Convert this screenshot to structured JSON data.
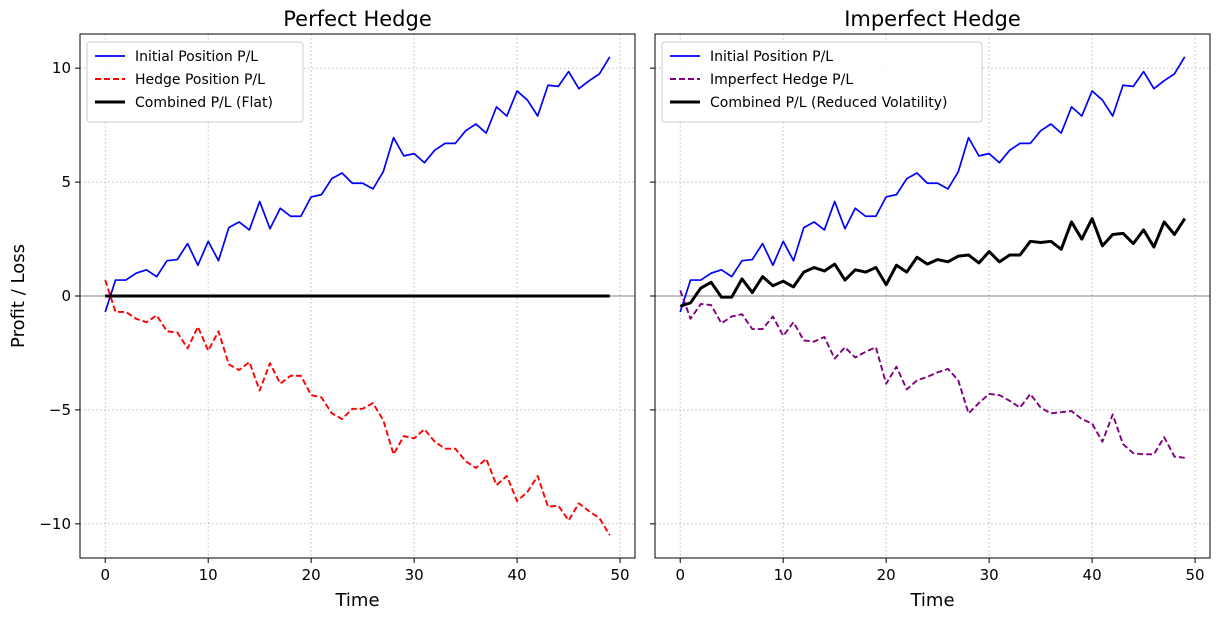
{
  "chart_data": [
    {
      "type": "line",
      "title": "Perfect Hedge",
      "xlabel": "Time",
      "ylabel": "Profit / Loss",
      "xlim": [
        -2.45,
        51.45
      ],
      "ylim": [
        -11.5,
        11.5
      ],
      "x_ticks": [
        0,
        10,
        20,
        30,
        40,
        50
      ],
      "y_ticks": [
        -10,
        -5,
        0,
        5,
        10
      ],
      "x_tick_labels": [
        "0",
        "10",
        "20",
        "30",
        "40",
        "50"
      ],
      "y_tick_labels": [
        "−10",
        "−5",
        "0",
        "5",
        "10"
      ],
      "grid": true,
      "zero_line": true,
      "legend_position": "upper left",
      "x": [
        0,
        1,
        2,
        3,
        4,
        5,
        6,
        7,
        8,
        9,
        10,
        11,
        12,
        13,
        14,
        15,
        16,
        17,
        18,
        19,
        20,
        21,
        22,
        23,
        24,
        25,
        26,
        27,
        28,
        29,
        30,
        31,
        32,
        33,
        34,
        35,
        36,
        37,
        38,
        39,
        40,
        41,
        42,
        43,
        44,
        45,
        46,
        47,
        48,
        49
      ],
      "series": [
        {
          "name": "Initial Position P/L",
          "color": "#0000ff",
          "style": "solid",
          "values": [
            -0.7,
            0.7,
            0.7,
            1.0,
            1.15,
            0.85,
            1.55,
            1.6,
            2.3,
            1.35,
            2.4,
            1.55,
            3.0,
            3.25,
            2.9,
            4.15,
            2.95,
            3.85,
            3.5,
            3.5,
            4.35,
            4.45,
            5.15,
            5.4,
            4.95,
            4.95,
            4.7,
            5.45,
            6.95,
            6.15,
            6.25,
            5.85,
            6.4,
            6.7,
            6.7,
            7.25,
            7.55,
            7.15,
            8.3,
            7.9,
            9.0,
            8.6,
            7.9,
            9.25,
            9.2,
            9.85,
            9.1,
            9.45,
            9.75,
            10.5
          ]
        },
        {
          "name": "Hedge Position P/L",
          "color": "#ff0000",
          "style": "dashed",
          "values": [
            0.7,
            -0.7,
            -0.7,
            -1.0,
            -1.15,
            -0.85,
            -1.55,
            -1.6,
            -2.3,
            -1.35,
            -2.4,
            -1.55,
            -3.0,
            -3.25,
            -2.9,
            -4.15,
            -2.95,
            -3.85,
            -3.5,
            -3.5,
            -4.35,
            -4.45,
            -5.15,
            -5.4,
            -4.95,
            -4.95,
            -4.7,
            -5.45,
            -6.95,
            -6.15,
            -6.25,
            -5.85,
            -6.4,
            -6.7,
            -6.7,
            -7.25,
            -7.55,
            -7.15,
            -8.3,
            -7.9,
            -9.0,
            -8.6,
            -7.9,
            -9.25,
            -9.2,
            -9.85,
            -9.1,
            -9.45,
            -9.75,
            -10.5
          ]
        },
        {
          "name": "Combined P/L (Flat)",
          "color": "#000000",
          "style": "thick",
          "values": [
            0,
            0,
            0,
            0,
            0,
            0,
            0,
            0,
            0,
            0,
            0,
            0,
            0,
            0,
            0,
            0,
            0,
            0,
            0,
            0,
            0,
            0,
            0,
            0,
            0,
            0,
            0,
            0,
            0,
            0,
            0,
            0,
            0,
            0,
            0,
            0,
            0,
            0,
            0,
            0,
            0,
            0,
            0,
            0,
            0,
            0,
            0,
            0,
            0,
            0
          ]
        }
      ]
    },
    {
      "type": "line",
      "title": "Imperfect Hedge",
      "xlabel": "Time",
      "ylabel": "",
      "xlim": [
        -2.45,
        51.45
      ],
      "ylim": [
        -11.5,
        11.5
      ],
      "x_ticks": [
        0,
        10,
        20,
        30,
        40,
        50
      ],
      "y_ticks": [
        -10,
        -5,
        0,
        5,
        10
      ],
      "x_tick_labels": [
        "0",
        "10",
        "20",
        "30",
        "40",
        "50"
      ],
      "y_tick_labels": [],
      "grid": true,
      "zero_line": true,
      "legend_position": "upper left",
      "x": [
        0,
        1,
        2,
        3,
        4,
        5,
        6,
        7,
        8,
        9,
        10,
        11,
        12,
        13,
        14,
        15,
        16,
        17,
        18,
        19,
        20,
        21,
        22,
        23,
        24,
        25,
        26,
        27,
        28,
        29,
        30,
        31,
        32,
        33,
        34,
        35,
        36,
        37,
        38,
        39,
        40,
        41,
        42,
        43,
        44,
        45,
        46,
        47,
        48,
        49
      ],
      "series": [
        {
          "name": "Initial Position P/L",
          "color": "#0000ff",
          "style": "solid",
          "values": [
            -0.7,
            0.7,
            0.7,
            1.0,
            1.15,
            0.85,
            1.55,
            1.6,
            2.3,
            1.35,
            2.4,
            1.55,
            3.0,
            3.25,
            2.9,
            4.15,
            2.95,
            3.85,
            3.5,
            3.5,
            4.35,
            4.45,
            5.15,
            5.4,
            4.95,
            4.95,
            4.7,
            5.45,
            6.95,
            6.15,
            6.25,
            5.85,
            6.4,
            6.7,
            6.7,
            7.25,
            7.55,
            7.15,
            8.3,
            7.9,
            9.0,
            8.6,
            7.9,
            9.25,
            9.2,
            9.85,
            9.1,
            9.45,
            9.75,
            10.5
          ]
        },
        {
          "name": "Imperfect Hedge P/L",
          "color": "#800080",
          "style": "dashed",
          "values": [
            0.25,
            -1.0,
            -0.35,
            -0.4,
            -1.2,
            -0.9,
            -0.8,
            -1.45,
            -1.45,
            -0.9,
            -1.75,
            -1.15,
            -1.95,
            -2.0,
            -1.8,
            -2.75,
            -2.25,
            -2.7,
            -2.45,
            -2.25,
            -3.85,
            -3.1,
            -4.1,
            -3.7,
            -3.55,
            -3.35,
            -3.2,
            -3.7,
            -5.15,
            -4.7,
            -4.3,
            -4.35,
            -4.6,
            -4.9,
            -4.3,
            -4.9,
            -5.15,
            -5.1,
            -5.05,
            -5.4,
            -5.6,
            -6.4,
            -5.2,
            -6.5,
            -6.9,
            -6.95,
            -6.95,
            -6.2,
            -7.05,
            -7.1
          ]
        },
        {
          "name": "Combined P/L (Reduced Volatility)",
          "color": "#000000",
          "style": "thick",
          "values": [
            -0.45,
            -0.3,
            0.35,
            0.6,
            -0.05,
            -0.05,
            0.75,
            0.15,
            0.85,
            0.45,
            0.65,
            0.4,
            1.05,
            1.25,
            1.1,
            1.4,
            0.7,
            1.15,
            1.05,
            1.25,
            0.5,
            1.35,
            1.05,
            1.7,
            1.4,
            1.6,
            1.5,
            1.75,
            1.8,
            1.45,
            1.95,
            1.5,
            1.8,
            1.8,
            2.4,
            2.35,
            2.4,
            2.05,
            3.25,
            2.5,
            3.4,
            2.2,
            2.7,
            2.75,
            2.3,
            2.9,
            2.15,
            3.25,
            2.7,
            3.4
          ]
        }
      ]
    }
  ]
}
